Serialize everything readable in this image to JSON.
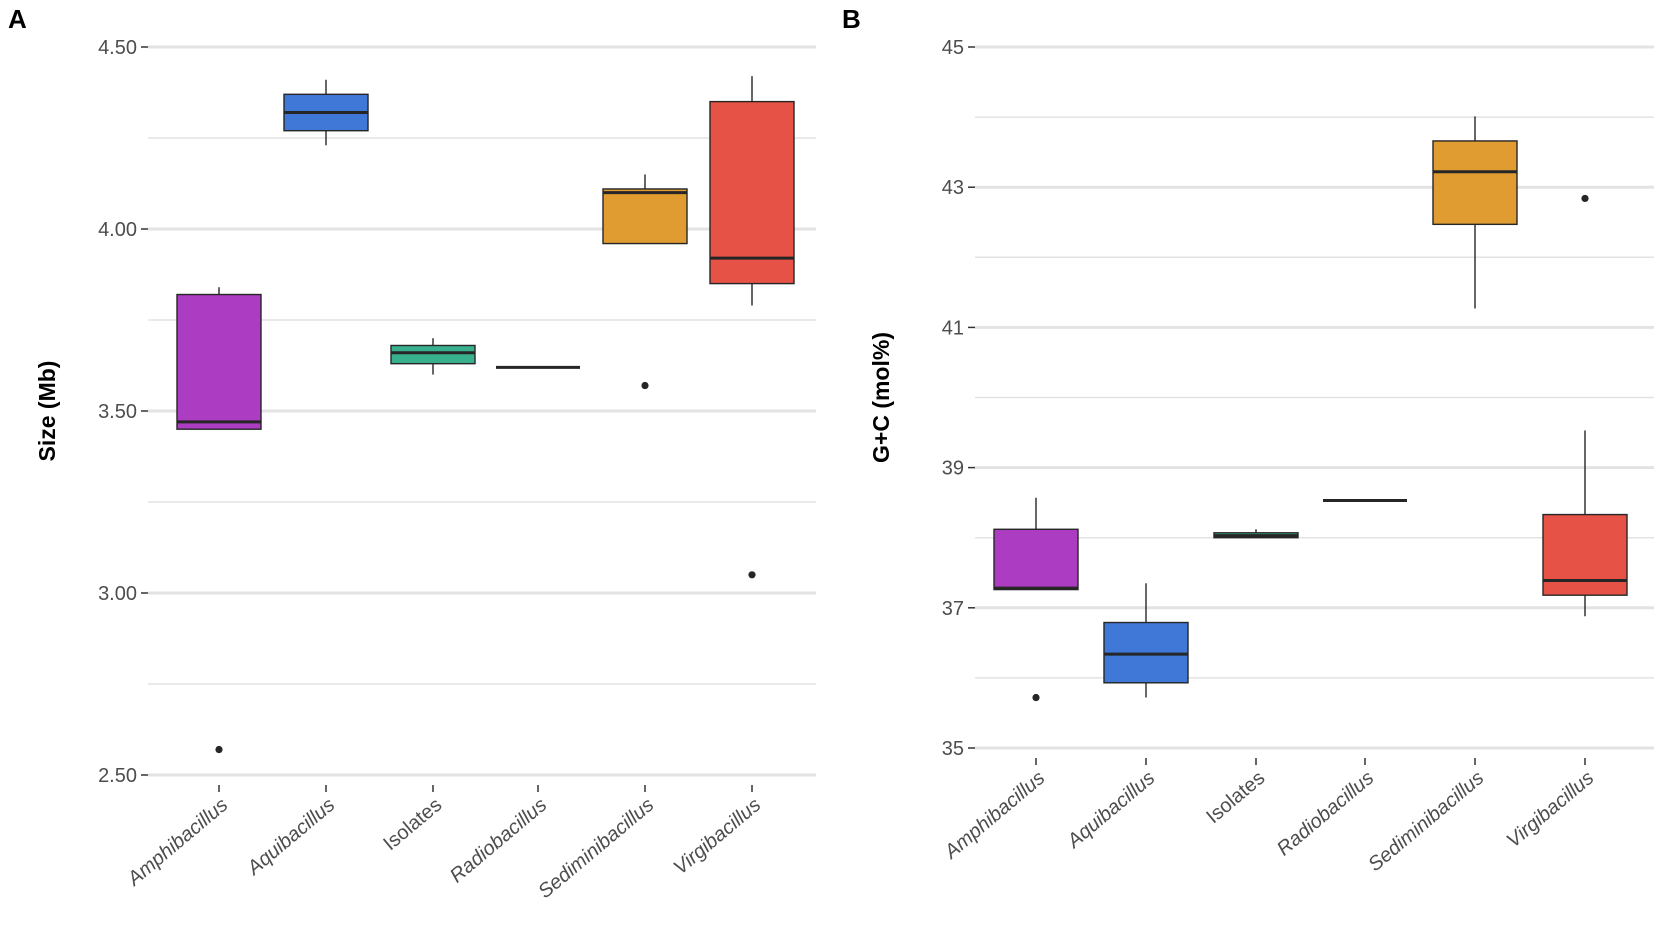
{
  "chart_data": [
    {
      "panel": "A",
      "type": "boxplot",
      "ylabel": "Size (Mb)",
      "xlabel": "",
      "ylim": [
        2.45,
        4.55
      ],
      "yticks": [
        2.5,
        3.0,
        3.5,
        4.0,
        4.5
      ],
      "ytick_labels": [
        "2.50",
        "3.00",
        "3.50",
        "4.00",
        "4.50"
      ],
      "minor_gridlines": [
        2.75,
        3.25,
        3.75,
        4.25
      ],
      "grid": true,
      "categories": [
        "Amphibacillus",
        "Aquibacillus",
        "Isolates",
        "Radiobacillus",
        "Sediminibacillus",
        "Virgibacillus"
      ],
      "boxes": [
        {
          "category": "Amphibacillus",
          "low": 3.45,
          "q1": 3.45,
          "median": 3.47,
          "q3": 3.82,
          "high": 3.84,
          "outliers": [
            2.57
          ]
        },
        {
          "category": "Aquibacillus",
          "low": 4.23,
          "q1": 4.27,
          "median": 4.32,
          "q3": 4.37,
          "high": 4.41,
          "outliers": []
        },
        {
          "category": "Isolates",
          "low": 3.6,
          "q1": 3.63,
          "median": 3.66,
          "q3": 3.68,
          "high": 3.7,
          "outliers": []
        },
        {
          "category": "Radiobacillus",
          "low": 3.62,
          "q1": 3.62,
          "median": 3.62,
          "q3": 3.62,
          "high": 3.62,
          "outliers": []
        },
        {
          "category": "Sediminibacillus",
          "low": 3.96,
          "q1": 3.96,
          "median": 4.1,
          "q3": 4.11,
          "high": 4.15,
          "outliers": [
            3.57
          ]
        },
        {
          "category": "Virgibacillus",
          "low": 3.79,
          "q1": 3.85,
          "median": 3.92,
          "q3": 4.35,
          "high": 4.42,
          "outliers": [
            3.05
          ]
        }
      ]
    },
    {
      "panel": "B",
      "type": "boxplot",
      "ylabel": "G+C (mol%)",
      "xlabel": "",
      "ylim": [
        34.6,
        45.5
      ],
      "yticks": [
        35,
        37,
        39,
        41,
        43,
        45
      ],
      "ytick_labels": [
        "35",
        "37",
        "39",
        "41",
        "43",
        "45"
      ],
      "minor_gridlines": [
        36,
        38,
        40,
        42,
        44
      ],
      "grid": true,
      "categories": [
        "Amphibacillus",
        "Aquibacillus",
        "Isolates",
        "Radiobacillus",
        "Sediminibacillus",
        "Virgibacillus"
      ],
      "boxes": [
        {
          "category": "Amphibacillus",
          "low": 37.26,
          "q1": 37.26,
          "median": 37.28,
          "q3": 38.12,
          "high": 38.57,
          "outliers": [
            35.72
          ]
        },
        {
          "category": "Aquibacillus",
          "low": 35.72,
          "q1": 35.93,
          "median": 36.34,
          "q3": 36.79,
          "high": 37.35,
          "outliers": []
        },
        {
          "category": "Isolates",
          "low": 37.99,
          "q1": 38.0,
          "median": 38.03,
          "q3": 38.07,
          "high": 38.12,
          "outliers": []
        },
        {
          "category": "Radiobacillus",
          "low": 38.53,
          "q1": 38.53,
          "median": 38.53,
          "q3": 38.53,
          "high": 38.53,
          "outliers": []
        },
        {
          "category": "Sediminibacillus",
          "low": 41.27,
          "q1": 42.47,
          "median": 43.22,
          "q3": 43.66,
          "high": 44.01,
          "outliers": []
        },
        {
          "category": "Virgibacillus",
          "low": 36.88,
          "q1": 37.18,
          "median": 37.39,
          "q3": 38.33,
          "high": 39.53,
          "outliers": [
            42.84
          ]
        }
      ]
    }
  ],
  "colors": {
    "Amphibacillus": "#ac3cc1",
    "Aquibacillus": "#3f78d6",
    "Isolates": "#39b08d",
    "Radiobacillus": "#4a4a4a",
    "Sediminibacillus": "#e09c30",
    "Virgibacillus": "#e65246",
    "grid": "#e3e3e3",
    "outline": "#262626"
  }
}
